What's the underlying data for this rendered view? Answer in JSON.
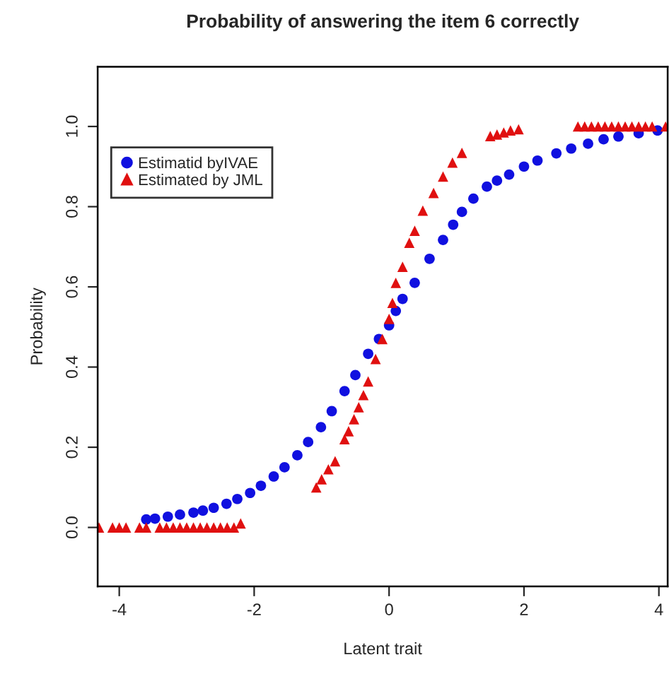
{
  "chart_data": {
    "type": "scatter",
    "title": "Probability of answering the item 6 correctly",
    "xlabel": "Latent trait",
    "ylabel": "Probability",
    "xlim": [
      -4.32,
      4.13
    ],
    "ylim": [
      -0.147,
      1.149
    ],
    "xticks": [
      -4,
      -2,
      0,
      2,
      4
    ],
    "yticks": [
      {
        "value": 0,
        "label": "0.0"
      },
      {
        "value": 0.2,
        "label": "0.2"
      },
      {
        "value": 0.4,
        "label": "0.4"
      },
      {
        "value": 0.6,
        "label": "0.6"
      },
      {
        "value": 0.8,
        "label": "0.8"
      },
      {
        "value": 1,
        "label": "1.0"
      }
    ],
    "grid": false,
    "legend": "top left",
    "series": [
      {
        "name": "Estimatid byIVAE",
        "color": "#1010e0",
        "marker": "circle",
        "x": [
          -3.6,
          -3.47,
          -3.28,
          -3.1,
          -2.9,
          -2.76,
          -2.6,
          -2.41,
          -2.25,
          -2.06,
          -1.9,
          -1.71,
          -1.55,
          -1.36,
          -1.2,
          -1.01,
          -0.85,
          -0.66,
          -0.5,
          -0.31,
          -0.15,
          0,
          0.1,
          0.2,
          0.38,
          0.6,
          0.8,
          0.95,
          1.08,
          1.25,
          1.45,
          1.6,
          1.78,
          2.0,
          2.2,
          2.48,
          2.7,
          2.95,
          3.18,
          3.4,
          3.7,
          3.98
        ],
        "values": [
          0.02,
          0.022,
          0.027,
          0.032,
          0.037,
          0.042,
          0.049,
          0.059,
          0.071,
          0.086,
          0.104,
          0.127,
          0.15,
          0.18,
          0.213,
          0.25,
          0.29,
          0.34,
          0.38,
          0.433,
          0.47,
          0.504,
          0.54,
          0.57,
          0.61,
          0.67,
          0.717,
          0.755,
          0.787,
          0.82,
          0.85,
          0.865,
          0.88,
          0.9,
          0.915,
          0.933,
          0.945,
          0.957,
          0.968,
          0.975,
          0.983,
          0.99
        ]
      },
      {
        "name": "Estimated by JML",
        "color": "#e01010",
        "marker": "triangle",
        "x": [
          -4.3,
          -4.1,
          -4.0,
          -3.9,
          -3.7,
          -3.6,
          -3.4,
          -3.3,
          -3.2,
          -3.1,
          -3.0,
          -2.9,
          -2.8,
          -2.7,
          -2.6,
          -2.5,
          -2.4,
          -2.3,
          -2.2,
          -1.08,
          -1.0,
          -0.9,
          -0.8,
          -0.66,
          -0.6,
          -0.52,
          -0.45,
          -0.38,
          -0.31,
          -0.2,
          -0.1,
          0,
          0.05,
          0.1,
          0.2,
          0.3,
          0.38,
          0.5,
          0.66,
          0.8,
          0.94,
          1.08,
          1.5,
          1.6,
          1.7,
          1.8,
          1.92,
          2.8,
          2.9,
          3.0,
          3.1,
          3.2,
          3.3,
          3.4,
          3.5,
          3.6,
          3.7,
          3.8,
          3.9,
          4.1
        ],
        "values": [
          0,
          0,
          0,
          0,
          0,
          0,
          0,
          0,
          0,
          0,
          0,
          0,
          0,
          0,
          0,
          0,
          0,
          0,
          0.01,
          0.1,
          0.12,
          0.145,
          0.165,
          0.22,
          0.24,
          0.27,
          0.3,
          0.33,
          0.364,
          0.42,
          0.47,
          0.52,
          0.56,
          0.61,
          0.65,
          0.71,
          0.74,
          0.79,
          0.834,
          0.875,
          0.91,
          0.934,
          0.976,
          0.98,
          0.985,
          0.99,
          0.993,
          1.0,
          1.0,
          1.0,
          1.0,
          1.0,
          1.0,
          1.0,
          1.0,
          1.0,
          1.0,
          1.0,
          1.0,
          1.0
        ]
      }
    ]
  }
}
